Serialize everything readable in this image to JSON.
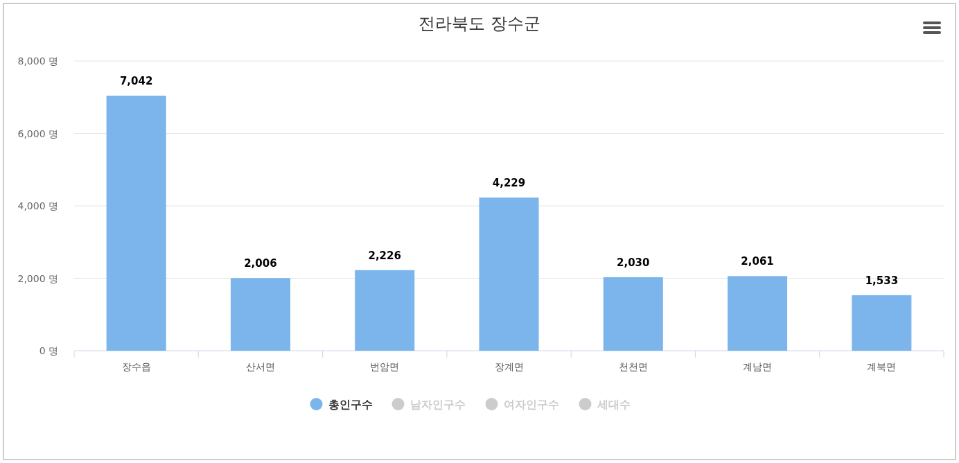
{
  "chart_data": {
    "type": "bar",
    "title": "전라북도 장수군",
    "categories": [
      "장수읍",
      "산서면",
      "번암면",
      "장계면",
      "천천면",
      "계남면",
      "계북면"
    ],
    "series": [
      {
        "name": "총인구수",
        "color": "#7cb5ec",
        "values": [
          7042,
          2006,
          2226,
          4229,
          2030,
          2061,
          1533
        ],
        "value_labels": [
          "7,042",
          "2,006",
          "2,226",
          "4,229",
          "2,030",
          "2,061",
          "1,533"
        ]
      },
      {
        "name": "남자인구수",
        "color": "#cccccc",
        "values": [
          null,
          null,
          null,
          null,
          null,
          null,
          null
        ]
      },
      {
        "name": "여자인구수",
        "color": "#cccccc",
        "values": [
          null,
          null,
          null,
          null,
          null,
          null,
          null
        ]
      },
      {
        "name": "세대수",
        "color": "#cccccc",
        "values": [
          null,
          null,
          null,
          null,
          null,
          null,
          null
        ]
      }
    ],
    "ylim": [
      0,
      8000
    ],
    "yticks": [
      {
        "value": 0,
        "label": "0 명"
      },
      {
        "value": 2000,
        "label": "2,000 명"
      },
      {
        "value": 4000,
        "label": "4,000 명"
      },
      {
        "value": 6000,
        "label": "6,000 명"
      },
      {
        "value": 8000,
        "label": "8,000 명"
      }
    ],
    "grid": "y",
    "legend": "bottom"
  }
}
